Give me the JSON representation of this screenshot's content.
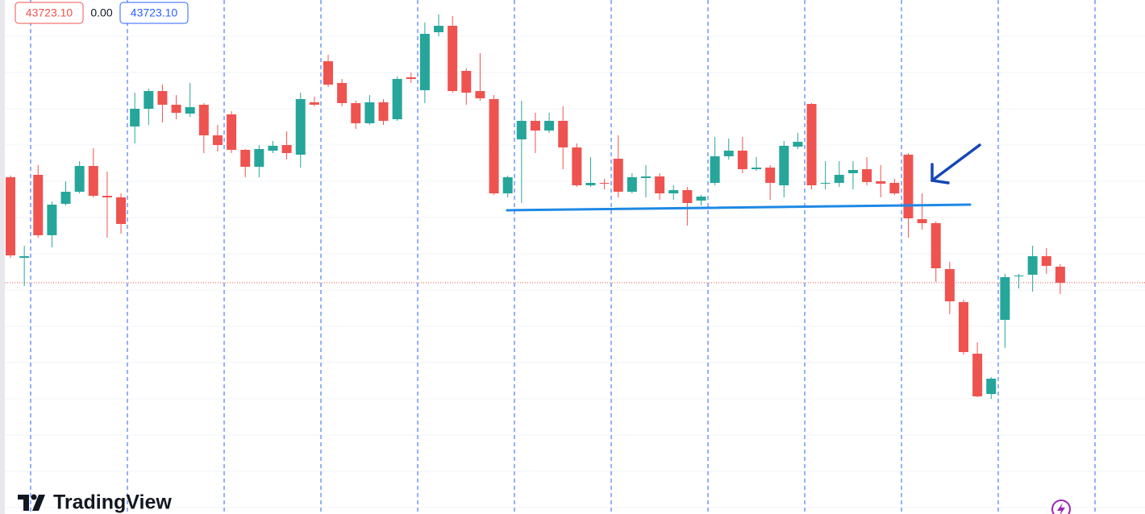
{
  "chart_data": {
    "type": "candlestick",
    "header": [
      "43723.10",
      "0.00",
      "43723.10"
    ],
    "brand": "TradingView",
    "up_color": "#26a69a",
    "down_color": "#ef5350",
    "price_line": 43723.1,
    "ylim": [
      43436,
      44074
    ],
    "open": [
      43854,
      43754,
      43857,
      43782,
      43821,
      43836,
      43868,
      43831,
      43829,
      43917,
      43939,
      43961,
      43944,
      43933,
      43944,
      43906,
      43932,
      43888,
      43867,
      43887,
      43894,
      43882,
      43947,
      43998,
      43971,
      43946,
      43921,
      43947,
      43926,
      43978,
      43962,
      44034,
      44042,
      43986,
      43961,
      43951,
      43834,
      43901,
      43924,
      43912,
      43924,
      43891,
      43844,
      43847,
      43877,
      43836,
      43853,
      43855,
      43834,
      43838,
      43825,
      43847,
      43880,
      43887,
      43864,
      43866,
      43844,
      43892,
      43945,
      43846,
      43847,
      43859,
      43864,
      43849,
      43847,
      43882,
      43802,
      43797,
      43740,
      43699,
      43635,
      43585,
      43677,
      43731,
      43733,
      43756,
      43743
    ],
    "high": [
      43856,
      43769,
      43869,
      43824,
      43849,
      43874,
      43890,
      43861,
      43834,
      43959,
      43964,
      43969,
      43956,
      43971,
      43946,
      43919,
      43936,
      43889,
      43894,
      43899,
      43911,
      43959,
      43954,
      44006,
      43976,
      43949,
      43956,
      43951,
      43979,
      43984,
      44046,
      44056,
      44054,
      43989,
      44008,
      43956,
      43856,
      43949,
      43934,
      43934,
      43942,
      43896,
      43879,
      43852,
      43906,
      43859,
      43869,
      43859,
      43844,
      43842,
      43832,
      43904,
      43902,
      43904,
      43879,
      43869,
      43899,
      43909,
      43946,
      43874,
      43874,
      43874,
      43879,
      43869,
      43852,
      43884,
      43834,
      43799,
      43749,
      43702,
      43649,
      43606,
      43734,
      43734,
      43769,
      43766,
      43746
    ],
    "low": [
      43754,
      43719,
      43779,
      43767,
      43819,
      43834,
      43829,
      43779,
      43784,
      43896,
      43919,
      43922,
      43926,
      43929,
      43884,
      43886,
      43884,
      43854,
      43854,
      43884,
      43876,
      43866,
      43942,
      43966,
      43942,
      43914,
      43919,
      43919,
      43924,
      43971,
      43946,
      44029,
      43959,
      43944,
      43949,
      43832,
      43829,
      43822,
      43884,
      43909,
      43864,
      43842,
      43842,
      43839,
      43829,
      43834,
      43829,
      43826,
      43826,
      43794,
      43819,
      43844,
      43876,
      43859,
      43862,
      43826,
      43829,
      43889,
      43839,
      43839,
      43842,
      43839,
      43844,
      43829,
      43832,
      43779,
      43789,
      43724,
      43684,
      43634,
      43581,
      43579,
      43642,
      43716,
      43712,
      43734,
      43709
    ],
    "close": [
      43757,
      43756,
      43782,
      43820,
      43836,
      43868,
      43831,
      43829,
      43796,
      43939,
      43961,
      43944,
      43934,
      43941,
      43906,
      43894,
      43888,
      43867,
      43889,
      43893,
      43884,
      43951,
      43944,
      43969,
      43946,
      43921,
      43947,
      43924,
      43976,
      43976,
      44032,
      44042,
      43961,
      43959,
      43952,
      43834,
      43854,
      43924,
      43912,
      43924,
      43891,
      43844,
      43847,
      43846,
      43836,
      43854,
      43855,
      43834,
      43838,
      43822,
      43830,
      43880,
      43887,
      43864,
      43866,
      43847,
      43893,
      43898,
      43844,
      43847,
      43857,
      43863,
      43848,
      43846,
      43834,
      43803,
      43797,
      43741,
      43700,
      43637,
      43582,
      43604,
      43730,
      43732,
      43756,
      43744,
      43723
    ]
  }
}
